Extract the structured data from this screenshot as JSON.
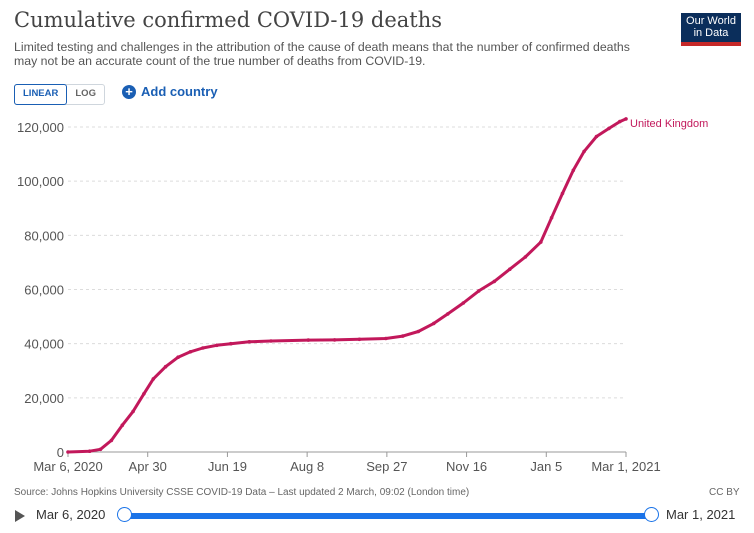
{
  "header": {
    "title": "Cumulative confirmed COVID-19 deaths",
    "subtitle": "Limited testing and challenges in the attribution of the cause of death means that the number of confirmed deaths may not be an accurate count of the true number of deaths from COVID-19.",
    "logo_line1": "Our World",
    "logo_line2": "in Data"
  },
  "controls": {
    "linear_label": "LINEAR",
    "log_label": "LOG",
    "add_country_label": "Add country"
  },
  "footer": {
    "source": "Source: Johns Hopkins University CSSE COVID-19 Data – Last updated 2 March, 09:02 (London time)",
    "license": "CC BY"
  },
  "timeline": {
    "start_label": "Mar 6, 2020",
    "end_label": "Mar 1, 2021"
  },
  "colors": {
    "series": "#c2185b",
    "accent": "#1a73e8"
  },
  "chart_data": {
    "type": "line",
    "title": "Cumulative confirmed COVID-19 deaths",
    "xlabel": "",
    "ylabel": "",
    "x_ticks": [
      "Mar 6, 2020",
      "Apr 30",
      "Jun 19",
      "Aug 8",
      "Sep 27",
      "Nov 16",
      "Jan 5",
      "Mar 1, 2021"
    ],
    "y_ticks": [
      "0",
      "20,000",
      "40,000",
      "60,000",
      "80,000",
      "100,000",
      "120,000"
    ],
    "ylim": [
      0,
      120000
    ],
    "grid": "horizontal dashed",
    "series": [
      {
        "name": "United Kingdom",
        "dates": [
          "2020-03-06",
          "2020-03-20",
          "2020-03-27",
          "2020-04-03",
          "2020-04-10",
          "2020-04-17",
          "2020-04-24",
          "2020-04-30",
          "2020-05-08",
          "2020-05-16",
          "2020-05-24",
          "2020-06-01",
          "2020-06-10",
          "2020-06-19",
          "2020-07-01",
          "2020-07-15",
          "2020-08-08",
          "2020-08-25",
          "2020-09-10",
          "2020-09-27",
          "2020-10-08",
          "2020-10-18",
          "2020-10-28",
          "2020-11-06",
          "2020-11-16",
          "2020-11-26",
          "2020-12-06",
          "2020-12-16",
          "2020-12-26",
          "2021-01-05",
          "2021-01-12",
          "2021-01-19",
          "2021-01-26",
          "2021-02-02",
          "2021-02-10",
          "2021-02-18",
          "2021-02-25",
          "2021-03-01"
        ],
        "values": [
          2,
          300,
          1000,
          4300,
          9900,
          15000,
          21500,
          27000,
          31500,
          35000,
          37000,
          38400,
          39400,
          40000,
          40700,
          41000,
          41300,
          41400,
          41600,
          41900,
          42800,
          44500,
          47500,
          51000,
          55000,
          59500,
          63000,
          67500,
          72000,
          77500,
          86500,
          95500,
          104000,
          111000,
          116500,
          119500,
          122000,
          123000
        ]
      }
    ]
  }
}
